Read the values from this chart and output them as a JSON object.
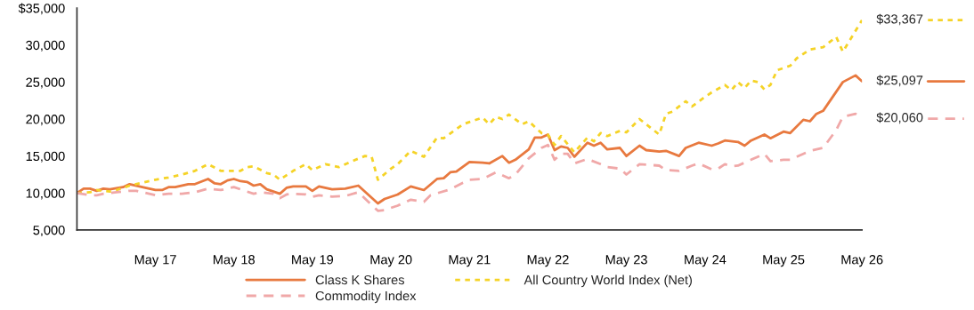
{
  "chart_data": {
    "type": "line",
    "series": [
      {
        "name": "Class K Shares",
        "color": "#e8793f",
        "line_style": "solid",
        "x": [
          "2016-05",
          "2016-06",
          "2016-07",
          "2016-08",
          "2016-09",
          "2016-10",
          "2016-12",
          "2017-01",
          "2017-03",
          "2017-05",
          "2017-06",
          "2017-07",
          "2017-08",
          "2017-10",
          "2017-11",
          "2018-01",
          "2018-02",
          "2018-03",
          "2018-04",
          "2018-05",
          "2018-06",
          "2018-07",
          "2018-08",
          "2018-09",
          "2018-10",
          "2018-11",
          "2018-12",
          "2019-01",
          "2019-02",
          "2019-04",
          "2019-05",
          "2019-06",
          "2019-08",
          "2019-10",
          "2019-12",
          "2020-03",
          "2020-04",
          "2020-06",
          "2020-08",
          "2020-10",
          "2020-12",
          "2021-01",
          "2021-02",
          "2021-03",
          "2021-05",
          "2021-07",
          "2021-08",
          "2021-10",
          "2021-11",
          "2021-12",
          "2022-02",
          "2022-03",
          "2022-04",
          "2022-05",
          "2022-06",
          "2022-07",
          "2022-08",
          "2022-09",
          "2022-11",
          "2022-12",
          "2023-01",
          "2023-02",
          "2023-04",
          "2023-05",
          "2023-07",
          "2023-08",
          "2023-10",
          "2023-11",
          "2024-01",
          "2024-02",
          "2024-04",
          "2024-06",
          "2024-07",
          "2024-08",
          "2024-10",
          "2024-11",
          "2024-12",
          "2025-02",
          "2025-03",
          "2025-05",
          "2025-06",
          "2025-08",
          "2025-09",
          "2025-10",
          "2025-11",
          "2026-02",
          "2026-04",
          "2026-05"
        ],
        "values": [
          10000,
          10600,
          10600,
          10300,
          10600,
          10500,
          10800,
          11200,
          10800,
          10400,
          10400,
          10800,
          10800,
          11200,
          11200,
          11900,
          11300,
          11200,
          11700,
          11900,
          11600,
          11500,
          11000,
          11200,
          10500,
          10200,
          9900,
          10700,
          10900,
          10900,
          10300,
          10900,
          10500,
          10600,
          11000,
          8600,
          9200,
          9800,
          10900,
          10400,
          11900,
          12000,
          12800,
          12900,
          14200,
          14100,
          14000,
          15000,
          14100,
          14500,
          15900,
          17500,
          17500,
          17900,
          15800,
          16300,
          16100,
          14900,
          16800,
          16400,
          16800,
          15900,
          16100,
          15000,
          16400,
          15800,
          15600,
          15700,
          15000,
          16100,
          16800,
          16400,
          16700,
          17100,
          16900,
          16400,
          17100,
          17900,
          17400,
          18300,
          18100,
          19900,
          19700,
          20700,
          21100,
          25000,
          25900,
          25097
        ]
      },
      {
        "name": "All Country World Index (Net)",
        "color": "#f5d327",
        "line_style": "dotted",
        "x": [
          "2016-05",
          "2016-07",
          "2016-08",
          "2016-10",
          "2016-11",
          "2017-01",
          "2017-05",
          "2017-07",
          "2017-09",
          "2017-11",
          "2018-01",
          "2018-03",
          "2018-04",
          "2018-06",
          "2018-07",
          "2018-08",
          "2018-10",
          "2018-11",
          "2018-12",
          "2019-02",
          "2019-04",
          "2019-05",
          "2019-07",
          "2019-09",
          "2019-11",
          "2020-01",
          "2020-02",
          "2020-03",
          "2020-05",
          "2020-06",
          "2020-08",
          "2020-10",
          "2020-12",
          "2021-01",
          "2021-04",
          "2021-05",
          "2021-07",
          "2021-08",
          "2021-09",
          "2021-10",
          "2021-11",
          "2022-01",
          "2022-02",
          "2022-04",
          "2022-05",
          "2022-06",
          "2022-07",
          "2022-09",
          "2022-11",
          "2022-12",
          "2023-01",
          "2023-02",
          "2023-04",
          "2023-05",
          "2023-07",
          "2023-10",
          "2023-11",
          "2023-12",
          "2024-02",
          "2024-03",
          "2024-05",
          "2024-06",
          "2024-08",
          "2024-09",
          "2024-10",
          "2024-11",
          "2024-12",
          "2025-01",
          "2025-02",
          "2025-03",
          "2025-04",
          "2025-06",
          "2025-07",
          "2025-09",
          "2025-11",
          "2026-01",
          "2026-02",
          "2026-05"
        ],
        "values": [
          10000,
          10100,
          10400,
          10200,
          10400,
          11000,
          11800,
          12100,
          12500,
          13000,
          13900,
          13000,
          13000,
          13000,
          13500,
          13600,
          12700,
          12500,
          11800,
          13000,
          13900,
          13100,
          13900,
          13500,
          14300,
          15000,
          14900,
          11800,
          13300,
          13900,
          15700,
          14900,
          17500,
          17400,
          19300,
          19600,
          20200,
          19300,
          20300,
          20000,
          20600,
          19300,
          19700,
          18100,
          17900,
          16500,
          17700,
          15500,
          17500,
          17000,
          18100,
          17700,
          18400,
          18200,
          20000,
          17900,
          20700,
          21000,
          22400,
          21700,
          23000,
          23600,
          24600,
          23900,
          25000,
          24200,
          25200,
          25000,
          24000,
          24600,
          26600,
          27200,
          28200,
          29400,
          29700,
          31100,
          29100,
          33367
        ]
      },
      {
        "name": "Commodity Index",
        "color": "#f0a8a8",
        "line_style": "dashed",
        "x": [
          "2016-05",
          "2016-07",
          "2016-08",
          "2016-09",
          "2016-11",
          "2017-01",
          "2017-02",
          "2017-05",
          "2017-07",
          "2017-09",
          "2017-11",
          "2018-01",
          "2018-03",
          "2018-05",
          "2018-07",
          "2018-08",
          "2018-09",
          "2018-11",
          "2018-12",
          "2019-01",
          "2019-02",
          "2019-04",
          "2019-05",
          "2019-06",
          "2019-08",
          "2019-10",
          "2019-12",
          "2020-03",
          "2020-04",
          "2020-06",
          "2020-08",
          "2020-10",
          "2020-11",
          "2021-02",
          "2021-04",
          "2021-05",
          "2021-07",
          "2021-09",
          "2021-11",
          "2021-12",
          "2022-02",
          "2022-04",
          "2022-05",
          "2022-06",
          "2022-07",
          "2022-08",
          "2022-09",
          "2022-11",
          "2023-01",
          "2023-02",
          "2023-04",
          "2023-05",
          "2023-07",
          "2023-10",
          "2023-11",
          "2024-01",
          "2024-03",
          "2024-04",
          "2024-06",
          "2024-07",
          "2024-08",
          "2024-09",
          "2024-10",
          "2024-12",
          "2025-02",
          "2025-03",
          "2025-05",
          "2025-06",
          "2025-09",
          "2025-11",
          "2026-01",
          "2026-02",
          "2026-04",
          "2026-05"
        ],
        "values": [
          10000,
          9700,
          9700,
          9900,
          10100,
          10300,
          10300,
          9700,
          9900,
          9900,
          10100,
          10600,
          10400,
          10800,
          10200,
          9900,
          10100,
          9900,
          9300,
          9800,
          9900,
          9800,
          9500,
          9700,
          9500,
          9600,
          10100,
          7600,
          7700,
          8300,
          9100,
          8800,
          9700,
          10500,
          11400,
          11800,
          11900,
          12800,
          12000,
          12500,
          14700,
          16100,
          16500,
          14500,
          15300,
          15300,
          14000,
          14600,
          13900,
          13500,
          13300,
          12500,
          13900,
          13700,
          13100,
          13000,
          13700,
          14000,
          13200,
          13300,
          13900,
          13600,
          13700,
          14500,
          15300,
          14300,
          14500,
          14500,
          15700,
          16100,
          18500,
          20300,
          20700,
          20060
        ]
      }
    ],
    "xlim": [
      "2016-05",
      "2026-05"
    ],
    "xticks": [
      {
        "value": "2017-05",
        "label": "May 17"
      },
      {
        "value": "2018-05",
        "label": "May 18"
      },
      {
        "value": "2019-05",
        "label": "May 19"
      },
      {
        "value": "2020-05",
        "label": "May 20"
      },
      {
        "value": "2021-05",
        "label": "May 21"
      },
      {
        "value": "2022-05",
        "label": "May 22"
      },
      {
        "value": "2023-05",
        "label": "May 23"
      },
      {
        "value": "2024-05",
        "label": "May 24"
      },
      {
        "value": "2025-05",
        "label": "May 25"
      },
      {
        "value": "2026-05",
        "label": "May 26"
      }
    ],
    "ylim": [
      5000,
      35000
    ],
    "yticks": [
      {
        "value": 5000,
        "label": "5,000"
      },
      {
        "value": 10000,
        "label": "10,000"
      },
      {
        "value": 15000,
        "label": "15,000"
      },
      {
        "value": 20000,
        "label": "20,000"
      },
      {
        "value": 25000,
        "label": "25,000"
      },
      {
        "value": 30000,
        "label": "30,000"
      },
      {
        "value": 35000,
        "label": "$35,000"
      }
    ],
    "annotations": [
      {
        "text": "$33,367",
        "x": "2026-05",
        "y": 33367
      },
      {
        "text": "$25,097",
        "x": "2026-05",
        "y": 25097
      },
      {
        "text": "$20,060",
        "x": "2026-05",
        "y": 20060
      }
    ],
    "grid": false,
    "legend": "bottom",
    "marker": "none"
  }
}
